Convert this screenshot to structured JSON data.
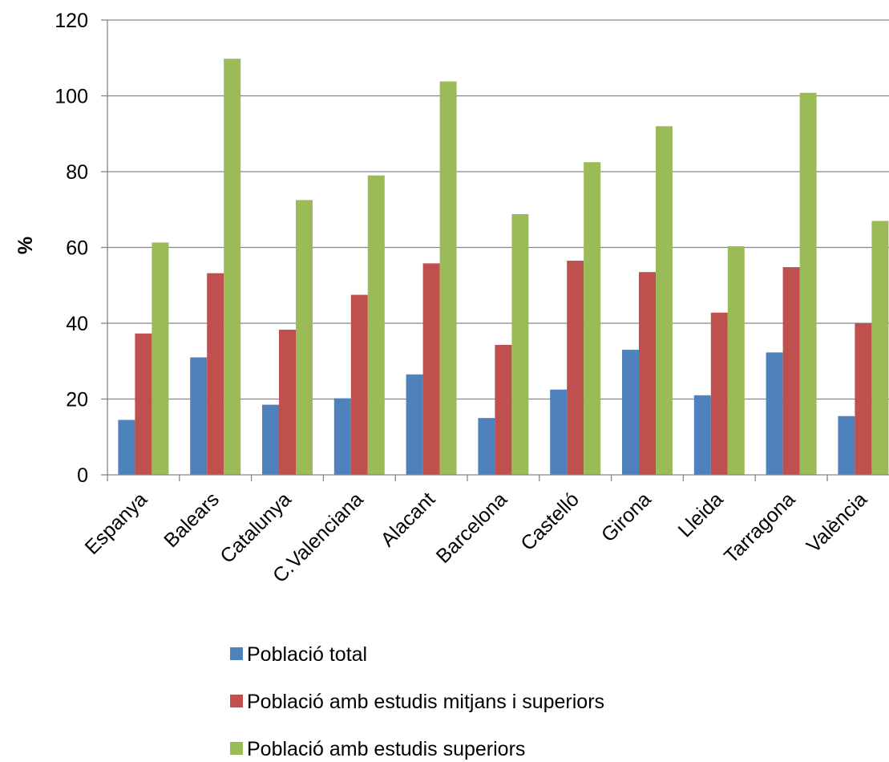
{
  "chart_data": {
    "type": "bar",
    "title": "",
    "xlabel": "",
    "ylabel": "%",
    "ylim": [
      0,
      120
    ],
    "yticks": [
      "0",
      "20",
      "40",
      "60",
      "80",
      "100",
      "120"
    ],
    "grid": true,
    "legend_position": "bottom",
    "categories": [
      "Espanya",
      "Balears",
      "Catalunya",
      "C.Valenciana",
      "Alacant",
      "Barcelona",
      "Castelló",
      "Girona",
      "Lleida",
      "Tarragona",
      "València"
    ],
    "series": [
      {
        "name": "Població total",
        "color": "#4F81BD",
        "values": [
          14.5,
          31,
          18.5,
          20.2,
          26.5,
          15,
          22.5,
          33,
          21,
          32.3,
          15.5
        ]
      },
      {
        "name": "Població amb estudis mitjans i superiors",
        "color": "#C0504D",
        "values": [
          37.3,
          53.2,
          38.3,
          47.5,
          55.8,
          34.3,
          56.5,
          53.5,
          42.8,
          54.8,
          40
        ]
      },
      {
        "name": "Població amb estudis superiors",
        "color": "#9BBB59",
        "values": [
          61.3,
          109.8,
          72.5,
          79,
          103.8,
          68.8,
          82.5,
          92,
          60.3,
          100.8,
          67
        ]
      }
    ]
  }
}
